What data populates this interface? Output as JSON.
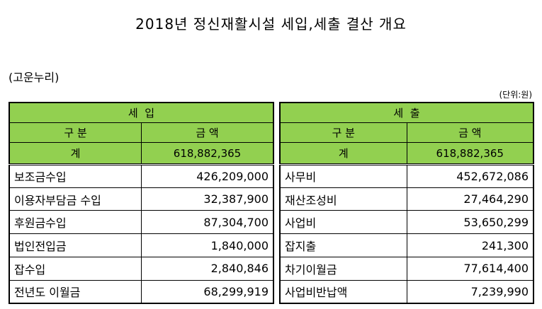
{
  "title": "2018년 정신재활시설 세입,세출 결산 개요",
  "organization": "(고운누리)",
  "unit": "(단위:원)",
  "income": {
    "header": "세  입",
    "col_category": "구 분",
    "col_amount": "금 액",
    "total_label": "계",
    "total_amount": "618,882,365",
    "rows": [
      {
        "label": "보조금수입",
        "amount": "426,209,000"
      },
      {
        "label": "이용자부담금 수입",
        "amount": "32,387,900"
      },
      {
        "label": "후원금수입",
        "amount": "87,304,700"
      },
      {
        "label": "법인전입금",
        "amount": "1,840,000"
      },
      {
        "label": "잡수입",
        "amount": "2,840,846"
      },
      {
        "label": "전년도 이월금",
        "amount": "68,299,919"
      }
    ]
  },
  "expense": {
    "header": "세  출",
    "col_category": "구 분",
    "col_amount": "금 액",
    "total_label": "계",
    "total_amount": "618,882,365",
    "rows": [
      {
        "label": "사무비",
        "amount": "452,672,086"
      },
      {
        "label": "재산조성비",
        "amount": "27,464,290"
      },
      {
        "label": "사업비",
        "amount": "53,650,299"
      },
      {
        "label": "잡지출",
        "amount": "241,300"
      },
      {
        "label": "차기이월금",
        "amount": "77,614,400"
      },
      {
        "label": "사업비반납액",
        "amount": "7,239,990"
      }
    ]
  },
  "colors": {
    "header_bg": "#92d050"
  }
}
